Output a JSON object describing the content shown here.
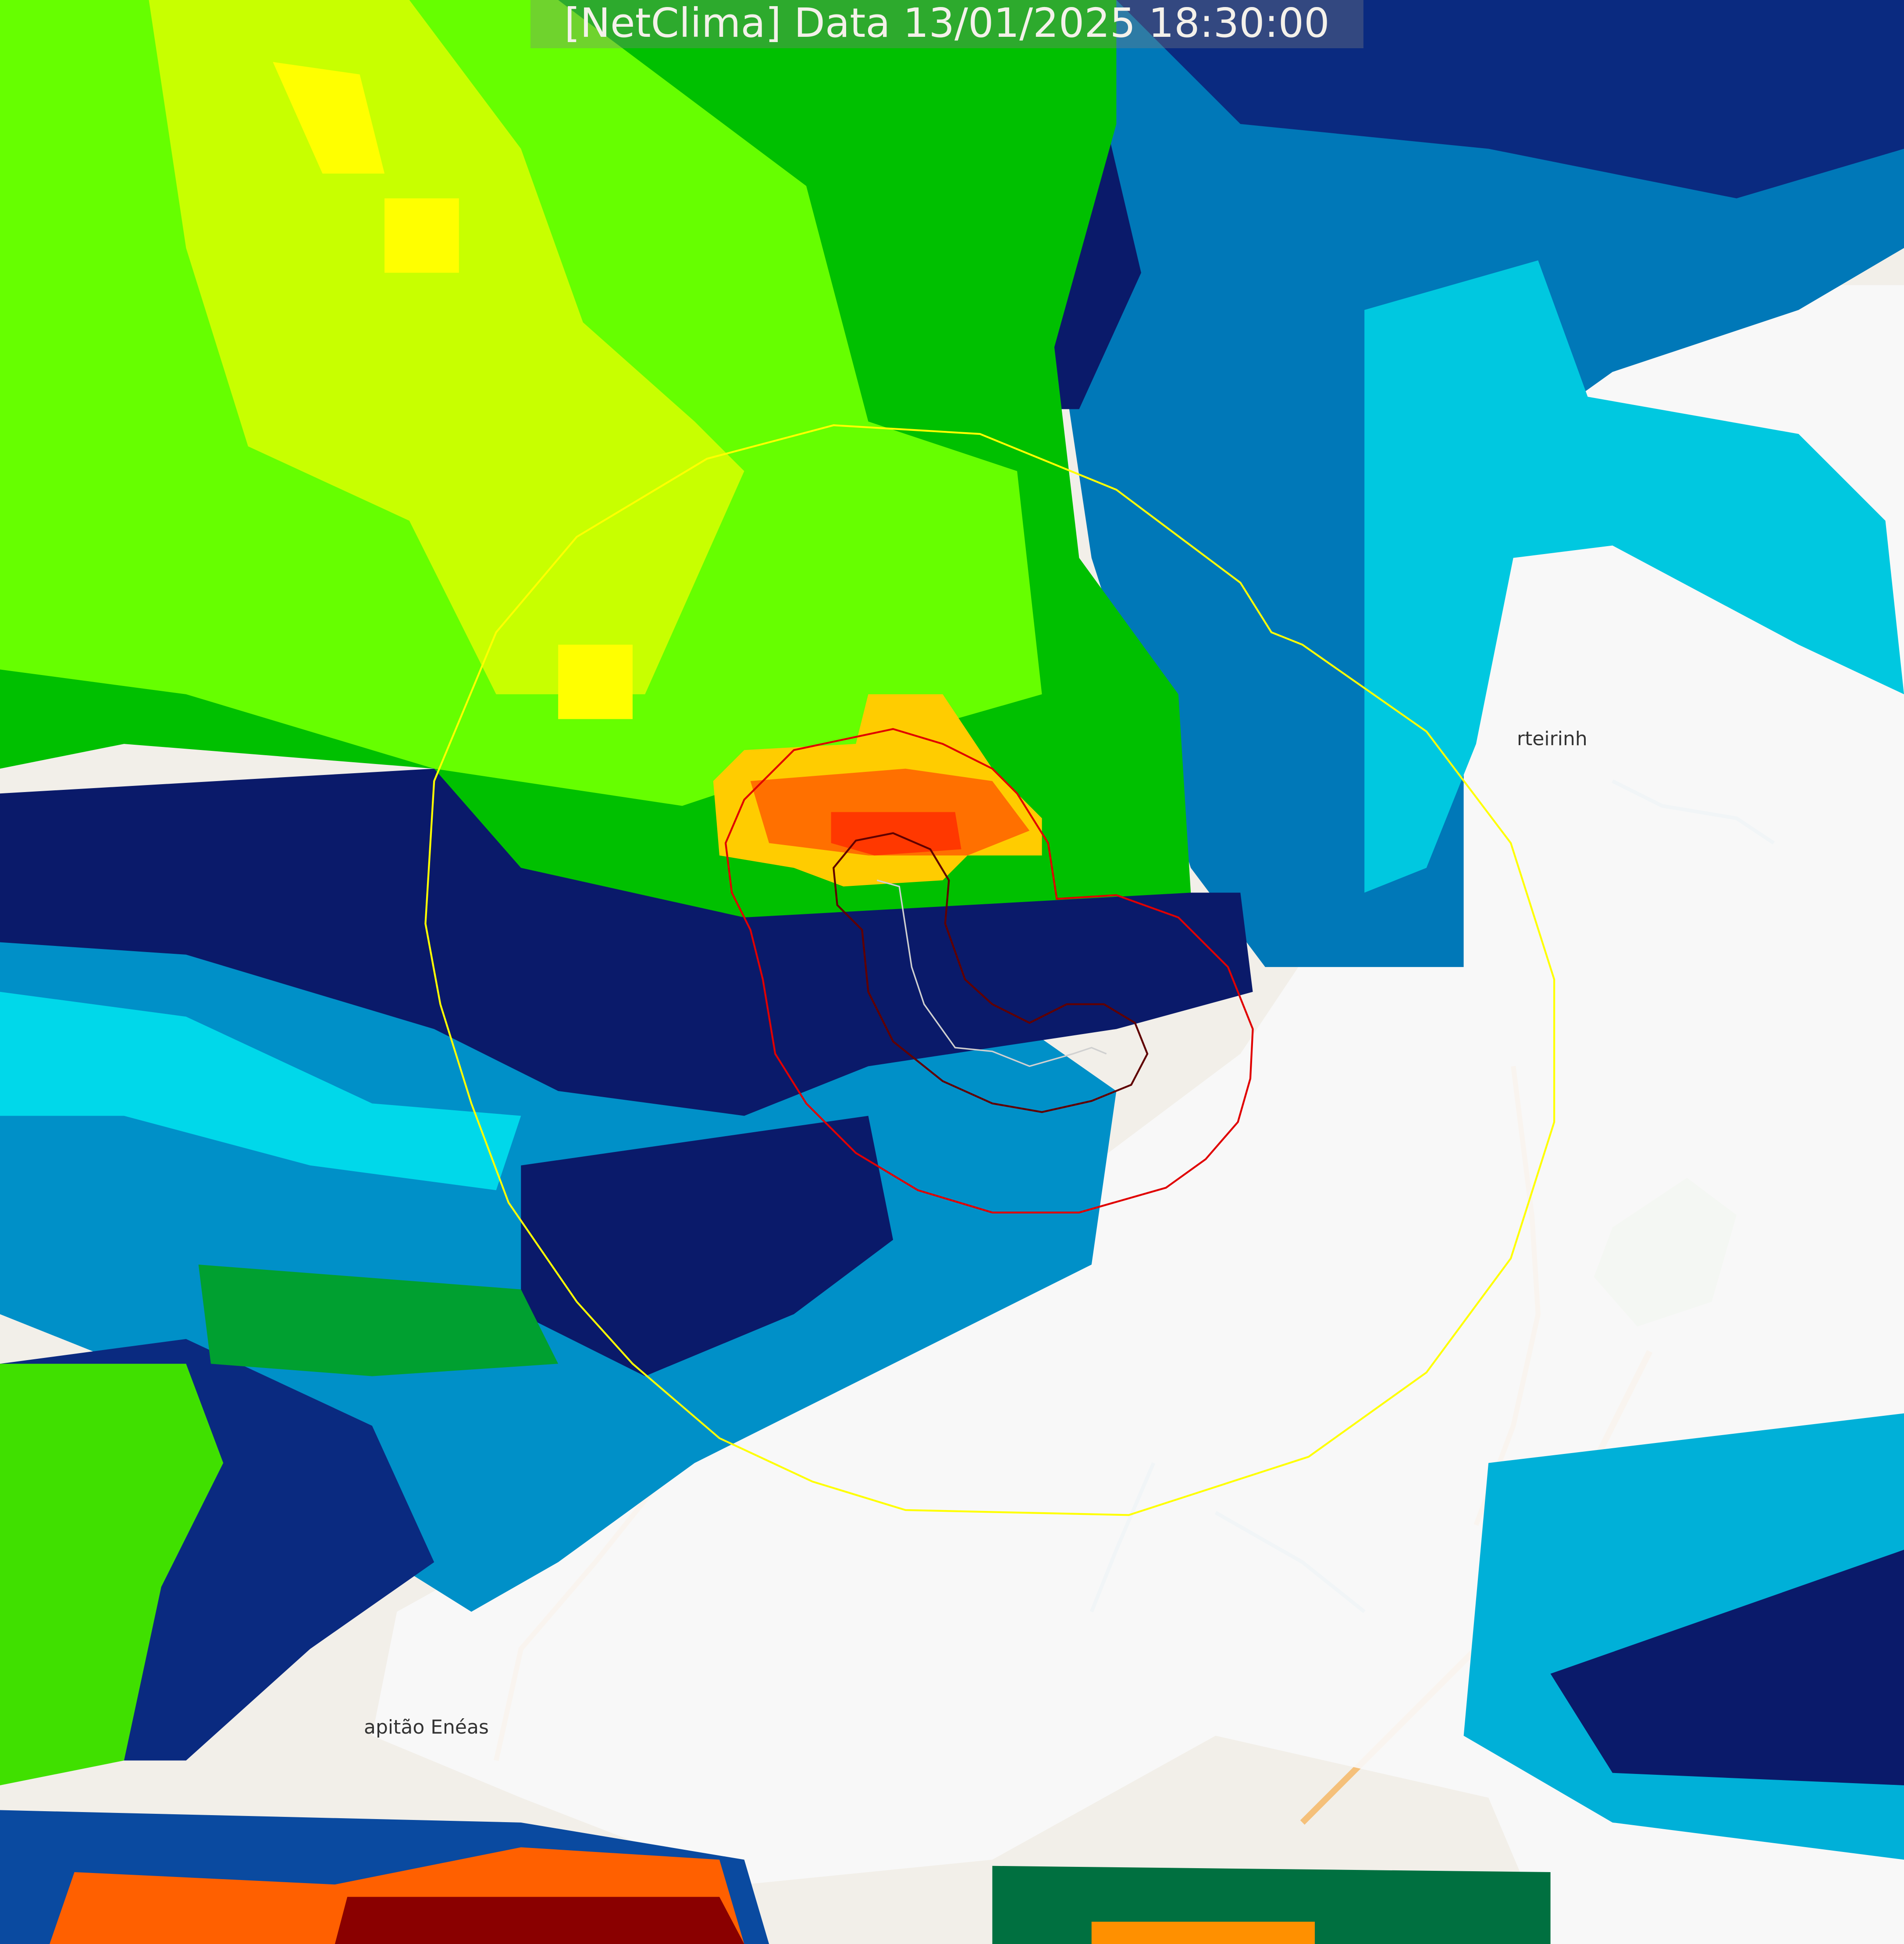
{
  "title": "[NetClima] Data 13/01/2025 18:30:00",
  "places": [
    {
      "label": "rteirinh"
    },
    {
      "label": "apitão Enéas"
    }
  ],
  "colors": {
    "map_background": "#f2efe9",
    "clouds": "#f8f8f8",
    "radar_cyan": "#00d8e8",
    "radar_blue": "#0080c0",
    "radar_navy": "#0a1a6a",
    "radar_dark_green": "#006040",
    "radar_green": "#00c800",
    "radar_lime": "#80ff00",
    "radar_yellow": "#e8ff00",
    "radar_orange": "#ff7000",
    "radar_red": "#ff2000",
    "range_ring": "#ffff00",
    "contour_outer": "#e00000",
    "contour_inner": "#600000",
    "track": "#d0d0d0",
    "road": "#f5c07a",
    "river": "#9ccde0",
    "park": "#c3dfb0"
  }
}
